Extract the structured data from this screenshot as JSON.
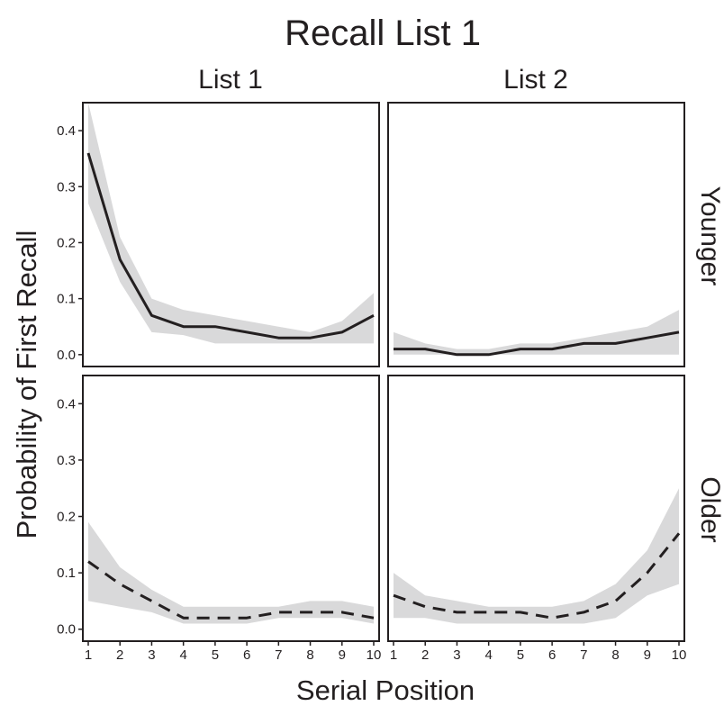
{
  "chart_data": {
    "type": "line",
    "title": "Recall List 1",
    "xlabel": "Serial Position",
    "ylabel": "Probability of First Recall",
    "x": [
      1,
      2,
      3,
      4,
      5,
      6,
      7,
      8,
      9,
      10
    ],
    "xlim": [
      1,
      10
    ],
    "ylim": [
      0,
      0.45
    ],
    "yticks": [
      0.0,
      0.1,
      0.2,
      0.3,
      0.4
    ],
    "ytick_labels": [
      "0.0",
      "0.1",
      "0.2",
      "0.3",
      "0.4"
    ],
    "xticks": [
      1,
      2,
      3,
      4,
      5,
      6,
      7,
      8,
      9,
      10
    ],
    "xtick_labels": [
      "1",
      "2",
      "3",
      "4",
      "5",
      "6",
      "7",
      "8",
      "9",
      "10"
    ],
    "col_facets": [
      "List 1",
      "List 2"
    ],
    "row_facets": [
      "Younger",
      "Older"
    ],
    "grid": false,
    "line_color": "#231f20",
    "ribbon_color": "#d9d9da",
    "panels": [
      {
        "row": "Younger",
        "col": "List 1",
        "linestyle": "solid",
        "values": [
          0.36,
          0.17,
          0.07,
          0.05,
          0.05,
          0.04,
          0.03,
          0.03,
          0.04,
          0.07
        ],
        "lower": [
          0.27,
          0.13,
          0.04,
          0.035,
          0.02,
          0.02,
          0.02,
          0.02,
          0.02,
          0.02
        ],
        "upper": [
          0.45,
          0.21,
          0.1,
          0.08,
          0.07,
          0.06,
          0.05,
          0.04,
          0.06,
          0.11
        ]
      },
      {
        "row": "Younger",
        "col": "List 2",
        "linestyle": "solid",
        "values": [
          0.01,
          0.01,
          0.0,
          0.0,
          0.01,
          0.01,
          0.02,
          0.02,
          0.03,
          0.04
        ],
        "lower": [
          0.0,
          0.0,
          0.0,
          0.0,
          0.0,
          0.0,
          0.0,
          0.0,
          0.0,
          0.0
        ],
        "upper": [
          0.04,
          0.02,
          0.01,
          0.01,
          0.02,
          0.02,
          0.03,
          0.04,
          0.05,
          0.08
        ]
      },
      {
        "row": "Older",
        "col": "List 1",
        "linestyle": "dashed",
        "values": [
          0.12,
          0.08,
          0.05,
          0.02,
          0.02,
          0.02,
          0.03,
          0.03,
          0.03,
          0.02
        ],
        "lower": [
          0.05,
          0.04,
          0.03,
          0.01,
          0.01,
          0.01,
          0.02,
          0.02,
          0.02,
          0.01
        ],
        "upper": [
          0.19,
          0.11,
          0.07,
          0.04,
          0.04,
          0.04,
          0.04,
          0.05,
          0.05,
          0.04
        ]
      },
      {
        "row": "Older",
        "col": "List 2",
        "linestyle": "dashed",
        "values": [
          0.06,
          0.04,
          0.03,
          0.03,
          0.03,
          0.02,
          0.03,
          0.05,
          0.1,
          0.17
        ],
        "lower": [
          0.02,
          0.02,
          0.01,
          0.01,
          0.01,
          0.01,
          0.01,
          0.02,
          0.06,
          0.08
        ],
        "upper": [
          0.1,
          0.06,
          0.05,
          0.04,
          0.04,
          0.04,
          0.05,
          0.08,
          0.14,
          0.25
        ]
      }
    ]
  }
}
